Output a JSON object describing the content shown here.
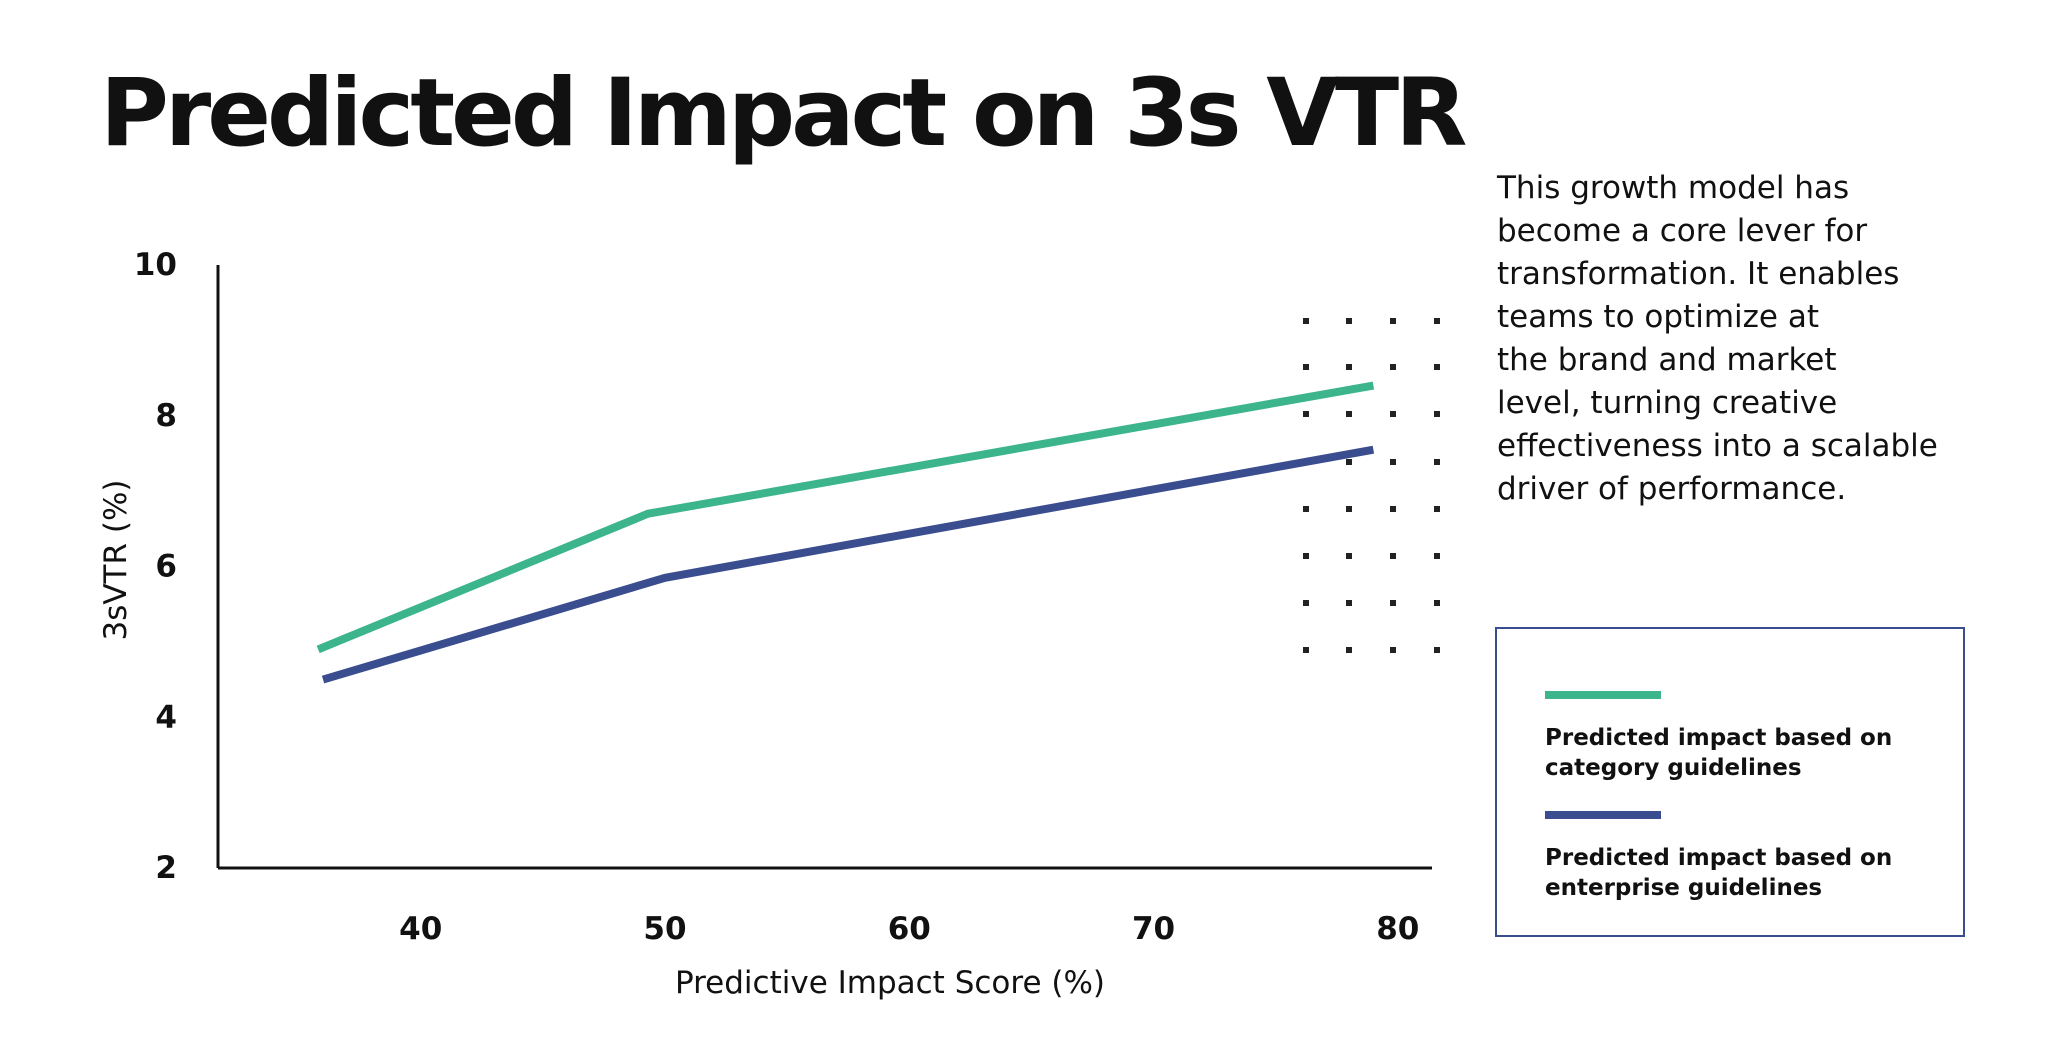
{
  "title": "Predicted Impact on 3s VTR",
  "description": "This growth model has\nbecome a core lever for\ntransformation. It enables\nteams to optimize at\nthe brand and market\nlevel, turning creative\neffectiveness into a scalable\ndriver of performance.",
  "colors": {
    "category": "#3db58c",
    "enterprise": "#3a4d8f",
    "axis": "#111111",
    "dots": "#222222"
  },
  "legend": {
    "items": [
      {
        "label": "Predicted impact based on\ncategory guidelines",
        "color": "#3db58c"
      },
      {
        "label": "Predicted impact based on\nenterprise guidelines",
        "color": "#3a4d8f"
      }
    ]
  },
  "chart_data": {
    "type": "line",
    "title": "Predicted Impact on 3s VTR",
    "xlabel": "Predictive Impact Score (%)",
    "ylabel": "3sVTR (%)",
    "xlim": [
      31.7,
      81.4
    ],
    "ylim": [
      2,
      10
    ],
    "xticks": [
      40,
      50,
      60,
      70,
      80
    ],
    "yticks": [
      2,
      4,
      6,
      8,
      10
    ],
    "grid": false,
    "legend_position": "bottom-right",
    "series": [
      {
        "name": "Predicted impact based on category guidelines",
        "color": "#3db58c",
        "x": [
          35.8,
          49.3,
          79
        ],
        "y": [
          4.9,
          6.7,
          8.4
        ]
      },
      {
        "name": "Predicted impact based on enterprise guidelines",
        "color": "#3a4d8f",
        "x": [
          36,
          50,
          79
        ],
        "y": [
          4.5,
          5.85,
          7.55
        ]
      }
    ]
  }
}
